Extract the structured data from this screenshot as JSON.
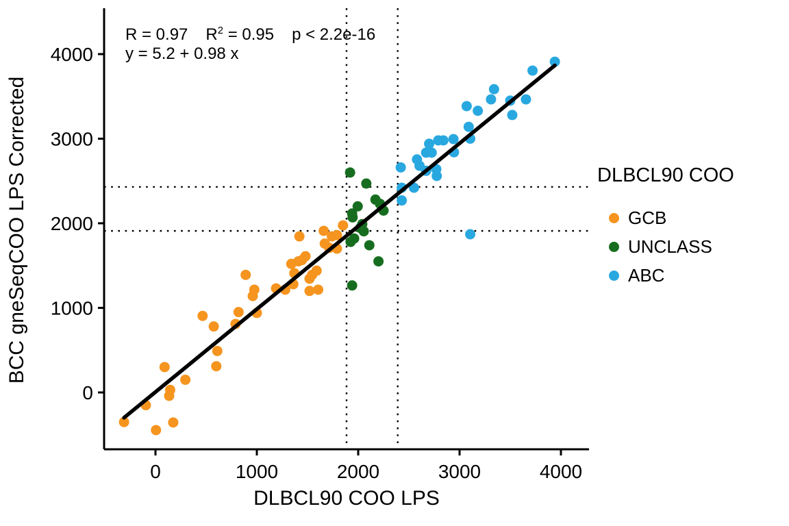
{
  "chart_data": {
    "type": "scatter",
    "title": "",
    "xlabel": "DLBCL90 COO LPS",
    "ylabel": "BCC gneSeqCOO LPS Corrected",
    "x_ticks": [
      0,
      1000,
      2000,
      3000,
      4000
    ],
    "y_ticks": [
      0,
      1000,
      2000,
      3000,
      4000
    ],
    "x_domain": [
      -510,
      4280
    ],
    "y_domain": [
      -690,
      4540
    ],
    "grid": false,
    "legend_position": "right",
    "point_radius_px": 7.5,
    "series": [
      {
        "name": "GCB",
        "color": "#F5941F",
        "points": [
          [
            -310,
            -350
          ],
          [
            -95,
            -150
          ],
          [
            5,
            -445
          ],
          [
            90,
            300
          ],
          [
            135,
            -40
          ],
          [
            145,
            30
          ],
          [
            175,
            -355
          ],
          [
            295,
            150
          ],
          [
            465,
            905
          ],
          [
            575,
            780
          ],
          [
            610,
            490
          ],
          [
            600,
            310
          ],
          [
            790,
            810
          ],
          [
            820,
            950
          ],
          [
            890,
            1390
          ],
          [
            960,
            1140
          ],
          [
            975,
            1215
          ],
          [
            1000,
            940
          ],
          [
            1190,
            1230
          ],
          [
            1280,
            1215
          ],
          [
            1340,
            1520
          ],
          [
            1370,
            1410
          ],
          [
            1360,
            1280
          ],
          [
            1410,
            1550
          ],
          [
            1445,
            1565
          ],
          [
            1480,
            1610
          ],
          [
            1520,
            1345
          ],
          [
            1545,
            1390
          ],
          [
            1590,
            1440
          ],
          [
            1605,
            1215
          ],
          [
            1520,
            1200
          ],
          [
            1420,
            1845
          ],
          [
            1670,
            1760
          ],
          [
            1715,
            1710
          ],
          [
            1790,
            1860
          ],
          [
            1790,
            1700
          ],
          [
            1850,
            1975
          ],
          [
            1740,
            1845
          ],
          [
            1660,
            1910
          ]
        ]
      },
      {
        "name": "UNCLASS",
        "color": "#176D1F",
        "points": [
          [
            1920,
            2600
          ],
          [
            2080,
            2470
          ],
          [
            2170,
            2280
          ],
          [
            2215,
            2230
          ],
          [
            2250,
            2150
          ],
          [
            1995,
            2200
          ],
          [
            1940,
            2115
          ],
          [
            1945,
            2070
          ],
          [
            2040,
            1990
          ],
          [
            2020,
            1945
          ],
          [
            2055,
            1905
          ],
          [
            1960,
            1820
          ],
          [
            1925,
            1780
          ],
          [
            2110,
            1740
          ],
          [
            2200,
            1550
          ],
          [
            1940,
            1265
          ]
        ]
      },
      {
        "name": "ABC",
        "color": "#29A8E0",
        "points": [
          [
            2420,
            2660
          ],
          [
            2430,
            2420
          ],
          [
            2430,
            2270
          ],
          [
            2550,
            2420
          ],
          [
            2580,
            2755
          ],
          [
            2605,
            2680
          ],
          [
            2670,
            2620
          ],
          [
            2670,
            2835
          ],
          [
            2700,
            2940
          ],
          [
            2725,
            2835
          ],
          [
            2770,
            2640
          ],
          [
            2775,
            2560
          ],
          [
            2790,
            2980
          ],
          [
            2840,
            2980
          ],
          [
            2940,
            2995
          ],
          [
            2945,
            2840
          ],
          [
            3090,
            3140
          ],
          [
            3105,
            3000
          ],
          [
            3070,
            3385
          ],
          [
            3180,
            3330
          ],
          [
            3310,
            3465
          ],
          [
            3340,
            3585
          ],
          [
            3500,
            3450
          ],
          [
            3520,
            3280
          ],
          [
            3655,
            3465
          ],
          [
            3720,
            3805
          ],
          [
            3940,
            3910
          ],
          [
            3105,
            1870
          ]
        ]
      }
    ],
    "regression_line": {
      "equation": "y = 5.2 + 0.98 x",
      "intercept": 5.2,
      "slope": 0.98,
      "x_start": -310,
      "x_end": 3940,
      "color": "#000000"
    },
    "reference_lines": {
      "style": "dotted",
      "color": "#000000",
      "vertical_x": [
        1885,
        2390
      ],
      "horizontal_y": [
        1910,
        2430
      ]
    }
  },
  "annotation": {
    "r_text": "R = 0.97",
    "r2_base": "R",
    "r2_sup": "2",
    "r2_rest": " = 0.95",
    "p_text": "p < 2.2e-16",
    "equation": "y = 5.2 + 0.98 x"
  },
  "axes": {
    "x_label": "DLBCL90 COO LPS",
    "y_label": "BCC gneSeqCOO LPS Corrected"
  },
  "legend": {
    "title": "DLBCL90 COO",
    "items": [
      {
        "label": "GCB",
        "color": "#F5941F"
      },
      {
        "label": "UNCLASS",
        "color": "#176D1F"
      },
      {
        "label": "ABC",
        "color": "#29A8E0"
      }
    ]
  }
}
